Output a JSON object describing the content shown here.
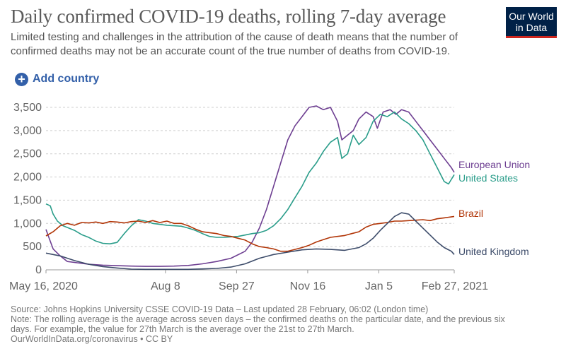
{
  "header": {
    "title": "Daily confirmed COVID-19 deaths, rolling 7-day average",
    "subtitle": "Limited testing and challenges in the attribution of the cause of death means that the number of confirmed deaths may not be an accurate count of the true number of deaths from COVID-19.",
    "logo_line1": "Our World",
    "logo_line2": "in Data"
  },
  "controls": {
    "add_country_label": "Add country",
    "add_icon": "plus-circle-icon"
  },
  "footer": {
    "source": "Source: Johns Hopkins University CSSE COVID-19 Data – Last updated 28 February, 06:02 (London time)",
    "note_line1": "Note: The rolling average is the average across seven days – the confirmed deaths on the particular date, and the previous six",
    "note_line2": "days. For example, the value for 27th March is the average over the 21st to 27th March.",
    "url": "OurWorldInData.org/coronavirus • CC BY"
  },
  "chart_data": {
    "type": "line",
    "title": "Daily confirmed COVID-19 deaths, rolling 7-day average",
    "xlabel": "",
    "ylabel": "",
    "ylim": [
      0,
      3500
    ],
    "yticks": [
      0,
      500,
      1000,
      1500,
      2000,
      2500,
      3000,
      3500
    ],
    "ytick_labels": [
      "0",
      "500",
      "1,000",
      "1,500",
      "2,000",
      "2,500",
      "3,000",
      "3,500"
    ],
    "xlim": [
      0,
      287
    ],
    "xticks": [
      {
        "day": 0,
        "label": "May 16, 2020"
      },
      {
        "day": 84,
        "label": "Aug 8"
      },
      {
        "day": 134,
        "label": "Sep 27"
      },
      {
        "day": 184,
        "label": "Nov 16"
      },
      {
        "day": 234,
        "label": "Jan 5"
      },
      {
        "day": 287,
        "label": "Feb 27, 2021"
      }
    ],
    "grid": true,
    "series": [
      {
        "name": "European Union",
        "color": "#6d3e91",
        "points": [
          [
            0,
            870
          ],
          [
            2,
            700
          ],
          [
            5,
            450
          ],
          [
            10,
            300
          ],
          [
            15,
            180
          ],
          [
            20,
            160
          ],
          [
            30,
            120
          ],
          [
            40,
            100
          ],
          [
            50,
            90
          ],
          [
            60,
            80
          ],
          [
            70,
            75
          ],
          [
            80,
            75
          ],
          [
            90,
            80
          ],
          [
            100,
            95
          ],
          [
            110,
            130
          ],
          [
            120,
            180
          ],
          [
            130,
            250
          ],
          [
            140,
            400
          ],
          [
            145,
            600
          ],
          [
            150,
            900
          ],
          [
            155,
            1300
          ],
          [
            160,
            1800
          ],
          [
            165,
            2300
          ],
          [
            170,
            2800
          ],
          [
            175,
            3100
          ],
          [
            180,
            3300
          ],
          [
            185,
            3500
          ],
          [
            190,
            3530
          ],
          [
            195,
            3450
          ],
          [
            200,
            3500
          ],
          [
            205,
            3200
          ],
          [
            208,
            2800
          ],
          [
            212,
            2900
          ],
          [
            216,
            3000
          ],
          [
            220,
            3250
          ],
          [
            225,
            3400
          ],
          [
            230,
            3300
          ],
          [
            233,
            3050
          ],
          [
            237,
            3400
          ],
          [
            242,
            3450
          ],
          [
            246,
            3350
          ],
          [
            250,
            3450
          ],
          [
            255,
            3400
          ],
          [
            260,
            3200
          ],
          [
            265,
            3000
          ],
          [
            270,
            2800
          ],
          [
            275,
            2600
          ],
          [
            280,
            2400
          ],
          [
            285,
            2200
          ],
          [
            287,
            2100
          ]
        ]
      },
      {
        "name": "United States",
        "color": "#2a9d8a",
        "points": [
          [
            0,
            1420
          ],
          [
            3,
            1380
          ],
          [
            5,
            1200
          ],
          [
            8,
            1050
          ],
          [
            12,
            950
          ],
          [
            16,
            900
          ],
          [
            20,
            850
          ],
          [
            25,
            760
          ],
          [
            30,
            700
          ],
          [
            35,
            620
          ],
          [
            40,
            570
          ],
          [
            45,
            560
          ],
          [
            50,
            590
          ],
          [
            55,
            780
          ],
          [
            60,
            950
          ],
          [
            65,
            1080
          ],
          [
            70,
            1050
          ],
          [
            75,
            1000
          ],
          [
            80,
            980
          ],
          [
            85,
            960
          ],
          [
            90,
            950
          ],
          [
            95,
            940
          ],
          [
            100,
            900
          ],
          [
            105,
            850
          ],
          [
            110,
            780
          ],
          [
            115,
            720
          ],
          [
            120,
            700
          ],
          [
            125,
            700
          ],
          [
            130,
            710
          ],
          [
            135,
            720
          ],
          [
            140,
            750
          ],
          [
            145,
            780
          ],
          [
            150,
            800
          ],
          [
            155,
            850
          ],
          [
            160,
            950
          ],
          [
            165,
            1100
          ],
          [
            170,
            1300
          ],
          [
            175,
            1550
          ],
          [
            180,
            1800
          ],
          [
            185,
            2100
          ],
          [
            190,
            2300
          ],
          [
            195,
            2550
          ],
          [
            200,
            2750
          ],
          [
            205,
            2850
          ],
          [
            208,
            2400
          ],
          [
            212,
            2500
          ],
          [
            216,
            2900
          ],
          [
            220,
            2700
          ],
          [
            225,
            2850
          ],
          [
            230,
            3200
          ],
          [
            235,
            3350
          ],
          [
            240,
            3300
          ],
          [
            245,
            3400
          ],
          [
            250,
            3250
          ],
          [
            255,
            3150
          ],
          [
            260,
            3000
          ],
          [
            265,
            2800
          ],
          [
            270,
            2500
          ],
          [
            275,
            2200
          ],
          [
            280,
            1900
          ],
          [
            283,
            1850
          ],
          [
            287,
            2050
          ]
        ]
      },
      {
        "name": "Brazil",
        "color": "#b13507",
        "points": [
          [
            0,
            730
          ],
          [
            5,
            820
          ],
          [
            10,
            950
          ],
          [
            15,
            1000
          ],
          [
            20,
            960
          ],
          [
            25,
            1020
          ],
          [
            30,
            1010
          ],
          [
            35,
            1030
          ],
          [
            40,
            1000
          ],
          [
            45,
            1040
          ],
          [
            50,
            1030
          ],
          [
            55,
            1010
          ],
          [
            60,
            1040
          ],
          [
            65,
            1050
          ],
          [
            70,
            1020
          ],
          [
            75,
            1060
          ],
          [
            80,
            1020
          ],
          [
            85,
            1050
          ],
          [
            90,
            1000
          ],
          [
            95,
            1000
          ],
          [
            100,
            950
          ],
          [
            105,
            880
          ],
          [
            110,
            820
          ],
          [
            115,
            800
          ],
          [
            120,
            780
          ],
          [
            125,
            740
          ],
          [
            130,
            720
          ],
          [
            135,
            680
          ],
          [
            140,
            640
          ],
          [
            145,
            560
          ],
          [
            150,
            500
          ],
          [
            155,
            480
          ],
          [
            160,
            450
          ],
          [
            165,
            400
          ],
          [
            170,
            400
          ],
          [
            175,
            440
          ],
          [
            180,
            480
          ],
          [
            185,
            530
          ],
          [
            190,
            600
          ],
          [
            195,
            650
          ],
          [
            200,
            700
          ],
          [
            205,
            720
          ],
          [
            210,
            740
          ],
          [
            215,
            780
          ],
          [
            220,
            820
          ],
          [
            225,
            920
          ],
          [
            230,
            980
          ],
          [
            235,
            1000
          ],
          [
            240,
            1020
          ],
          [
            245,
            1050
          ],
          [
            250,
            1050
          ],
          [
            255,
            1060
          ],
          [
            260,
            1070
          ],
          [
            265,
            1080
          ],
          [
            270,
            1060
          ],
          [
            275,
            1100
          ],
          [
            280,
            1120
          ],
          [
            287,
            1150
          ]
        ]
      },
      {
        "name": "United Kingdom",
        "color": "#3d4c6a",
        "points": [
          [
            0,
            360
          ],
          [
            10,
            300
          ],
          [
            20,
            200
          ],
          [
            30,
            120
          ],
          [
            40,
            70
          ],
          [
            50,
            40
          ],
          [
            60,
            15
          ],
          [
            70,
            10
          ],
          [
            80,
            10
          ],
          [
            90,
            10
          ],
          [
            100,
            10
          ],
          [
            110,
            20
          ],
          [
            120,
            30
          ],
          [
            130,
            60
          ],
          [
            140,
            130
          ],
          [
            150,
            250
          ],
          [
            160,
            330
          ],
          [
            170,
            380
          ],
          [
            180,
            430
          ],
          [
            190,
            450
          ],
          [
            200,
            440
          ],
          [
            210,
            420
          ],
          [
            220,
            480
          ],
          [
            225,
            560
          ],
          [
            230,
            680
          ],
          [
            235,
            850
          ],
          [
            240,
            1000
          ],
          [
            245,
            1150
          ],
          [
            250,
            1230
          ],
          [
            255,
            1200
          ],
          [
            260,
            1050
          ],
          [
            265,
            900
          ],
          [
            270,
            750
          ],
          [
            275,
            600
          ],
          [
            280,
            480
          ],
          [
            285,
            400
          ],
          [
            287,
            330
          ]
        ]
      }
    ]
  }
}
